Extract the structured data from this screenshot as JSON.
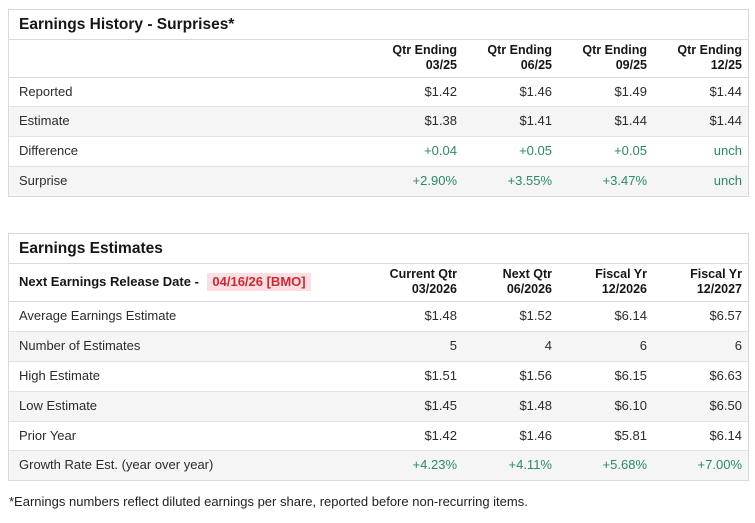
{
  "colors": {
    "positive": "#2a8a67",
    "negative_text": "#d22730",
    "negative_bg": "#fbdfe2"
  },
  "history": {
    "title": "Earnings History - Surprises*",
    "columns": [
      {
        "line1": "Qtr Ending",
        "line2": "03/25"
      },
      {
        "line1": "Qtr Ending",
        "line2": "06/25"
      },
      {
        "line1": "Qtr Ending",
        "line2": "09/25"
      },
      {
        "line1": "Qtr Ending",
        "line2": "12/25"
      }
    ],
    "rows": [
      {
        "label": "Reported",
        "values": [
          "$1.42",
          "$1.46",
          "$1.49",
          "$1.44"
        ]
      },
      {
        "label": "Estimate",
        "values": [
          "$1.38",
          "$1.41",
          "$1.44",
          "$1.44"
        ]
      },
      {
        "label": "Difference",
        "values": [
          "+0.04",
          "+0.05",
          "+0.05",
          "unch"
        ]
      },
      {
        "label": "Surprise",
        "values": [
          "+2.90%",
          "+3.55%",
          "+3.47%",
          "unch"
        ]
      }
    ]
  },
  "estimates": {
    "title": "Earnings Estimates",
    "release_date_label": "Next Earnings Release Date -",
    "release_date_value": "04/16/26 [BMO]",
    "columns": [
      {
        "line1": "Current Qtr",
        "line2": "03/2026"
      },
      {
        "line1": "Next Qtr",
        "line2": "06/2026"
      },
      {
        "line1": "Fiscal Yr",
        "line2": "12/2026"
      },
      {
        "line1": "Fiscal Yr",
        "line2": "12/2027"
      }
    ],
    "rows": [
      {
        "label": "Average Earnings Estimate",
        "values": [
          "$1.48",
          "$1.52",
          "$6.14",
          "$6.57"
        ]
      },
      {
        "label": "Number of Estimates",
        "values": [
          "5",
          "4",
          "6",
          "6"
        ]
      },
      {
        "label": "High Estimate",
        "values": [
          "$1.51",
          "$1.56",
          "$6.15",
          "$6.63"
        ]
      },
      {
        "label": "Low Estimate",
        "values": [
          "$1.45",
          "$1.48",
          "$6.10",
          "$6.50"
        ]
      },
      {
        "label": "Prior Year",
        "values": [
          "$1.42",
          "$1.46",
          "$5.81",
          "$6.14"
        ]
      },
      {
        "label": "Growth Rate Est. (year over year)",
        "values": [
          "+4.23%",
          "+4.11%",
          "+5.68%",
          "+7.00%"
        ]
      }
    ]
  },
  "footnote": "*Earnings numbers reflect diluted earnings per share, reported before non-recurring items."
}
